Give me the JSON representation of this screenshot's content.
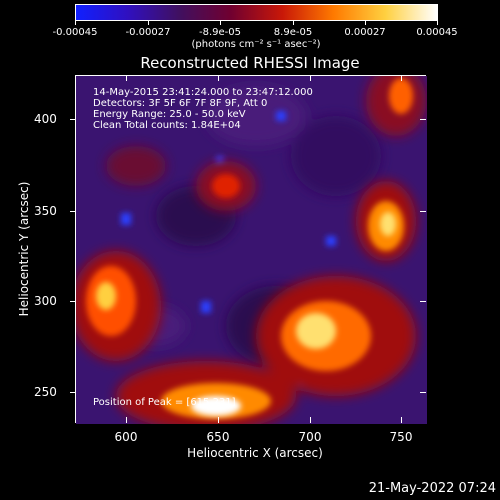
{
  "colorbar": {
    "labels": [
      "-0.00045",
      "-0.00027",
      "-8.9e-05",
      "8.9e-05",
      "0.00027",
      "0.00045"
    ],
    "units": "(photons cm⁻² s⁻¹ asec⁻²)",
    "colors": [
      "#1020ff",
      "#3010c0",
      "#401060",
      "#700030",
      "#c81808",
      "#ff7a00",
      "#ffd040",
      "#ffffff"
    ]
  },
  "title": "Reconstructed RHESSI Image",
  "annotations": {
    "time": "14-May-2015 23:41:24.000 to 23:47:12.000",
    "detectors": "Detectors: 3F 5F 6F 7F 8F 9F, Att 0",
    "energy": "Energy Range: 25.0 - 50.0 keV",
    "clean": "Clean    Total counts: 1.84E+04",
    "peak": "Position of Peak = [615,231]"
  },
  "axes": {
    "xlabel": "Heliocentric X (arcsec)",
    "ylabel": "Heliocentric Y (arcsec)",
    "xticks": [
      "600",
      "650",
      "700",
      "750"
    ],
    "yticks": [
      "250",
      "300",
      "350",
      "400"
    ]
  },
  "timestamp": "21-May-2022 07:24"
}
